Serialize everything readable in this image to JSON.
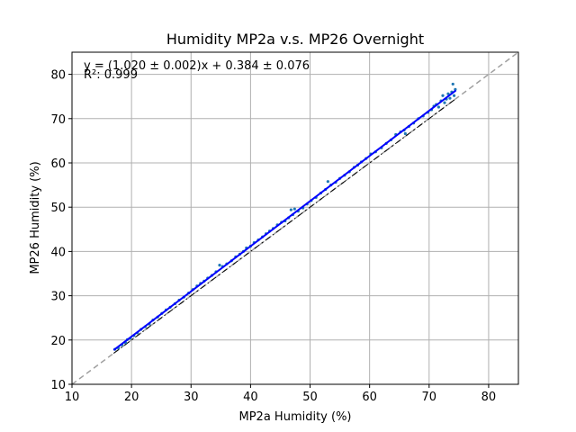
{
  "chart_data": {
    "type": "scatter",
    "title": "Humidity MP2a v.s. MP26 Overnight",
    "xlabel": "MP2a Humidity (%)",
    "ylabel": "MP26 Humidity (%)",
    "xlim": [
      10,
      85
    ],
    "ylim": [
      10,
      85
    ],
    "xticks": [
      10,
      20,
      30,
      40,
      50,
      60,
      70,
      80
    ],
    "yticks": [
      10,
      20,
      30,
      40,
      50,
      60,
      70,
      80
    ],
    "grid": true,
    "annotations": {
      "equation": "y = (1.020 ± 0.002)x + 0.384 ± 0.076",
      "r_squared": "R²: 0.999"
    },
    "fit": {
      "slope": 1.02,
      "intercept": 0.384,
      "x_range": [
        17,
        74.5
      ],
      "color": "#0000ff"
    },
    "identity": {
      "slope": 1.0,
      "intercept": 0,
      "x_range": [
        10,
        85
      ],
      "color": "#a0a0a0",
      "style": "dashed"
    },
    "reference": {
      "slope": 1.0,
      "intercept": 0,
      "x_range": [
        17,
        74.5
      ],
      "color": "#000000",
      "style": "dashdot"
    },
    "points_color": "#1f77b4",
    "points": [
      [
        17.2,
        17.9
      ],
      [
        17.8,
        18.2
      ],
      [
        18.4,
        18.9
      ],
      [
        19.0,
        19.4
      ],
      [
        19.3,
        20.1
      ],
      [
        19.8,
        20.4
      ],
      [
        20.4,
        21.0
      ],
      [
        21.0,
        21.6
      ],
      [
        21.6,
        22.4
      ],
      [
        22.3,
        23.0
      ],
      [
        23.0,
        23.6
      ],
      [
        23.6,
        24.5
      ],
      [
        24.4,
        25.2
      ],
      [
        25.1,
        26.0
      ],
      [
        25.8,
        26.8
      ],
      [
        26.5,
        27.4
      ],
      [
        27.3,
        28.2
      ],
      [
        28.0,
        29.0
      ],
      [
        28.8,
        29.7
      ],
      [
        29.6,
        30.6
      ],
      [
        30.3,
        31.4
      ],
      [
        31.0,
        32.2
      ],
      [
        31.6,
        32.8
      ],
      [
        32.2,
        33.3
      ],
      [
        32.8,
        34.0
      ],
      [
        33.5,
        34.6
      ],
      [
        34.2,
        35.4
      ],
      [
        34.8,
        36.9
      ],
      [
        35.3,
        36.6
      ],
      [
        36.0,
        37.2
      ],
      [
        36.8,
        37.9
      ],
      [
        37.5,
        38.8
      ],
      [
        38.2,
        39.4
      ],
      [
        38.8,
        40.0
      ],
      [
        39.3,
        40.8
      ],
      [
        40.0,
        41.2
      ],
      [
        40.6,
        42.0
      ],
      [
        41.3,
        42.6
      ],
      [
        42.0,
        43.3
      ],
      [
        42.6,
        44.0
      ],
      [
        43.2,
        44.6
      ],
      [
        43.8,
        45.2
      ],
      [
        44.5,
        46.0
      ],
      [
        45.2,
        46.6
      ],
      [
        45.8,
        46.9
      ],
      [
        46.4,
        47.6
      ],
      [
        46.8,
        49.4
      ],
      [
        47.4,
        49.6
      ],
      [
        47.1,
        48.3
      ],
      [
        48.0,
        49.1
      ],
      [
        48.8,
        49.8
      ],
      [
        49.5,
        50.7
      ],
      [
        50.2,
        51.5
      ],
      [
        51.0,
        52.2
      ],
      [
        51.8,
        53.2
      ],
      [
        52.6,
        54.0
      ],
      [
        53.0,
        55.8
      ],
      [
        53.5,
        55.0
      ],
      [
        54.3,
        55.6
      ],
      [
        55.0,
        56.5
      ],
      [
        55.8,
        57.2
      ],
      [
        56.6,
        58.0
      ],
      [
        57.4,
        59.0
      ],
      [
        58.0,
        59.5
      ],
      [
        58.6,
        60.2
      ],
      [
        59.4,
        61.0
      ],
      [
        60.2,
        62.0
      ],
      [
        61.0,
        62.5
      ],
      [
        62.0,
        63.4
      ],
      [
        62.8,
        64.4
      ],
      [
        63.6,
        65.2
      ],
      [
        64.4,
        66.4
      ],
      [
        65.2,
        67.0
      ],
      [
        65.8,
        67.4
      ],
      [
        66.0,
        66.6
      ],
      [
        66.6,
        68.2
      ],
      [
        67.4,
        69.0
      ],
      [
        68.2,
        70.0
      ],
      [
        69.0,
        70.6
      ],
      [
        69.8,
        71.4
      ],
      [
        70.4,
        72.0
      ],
      [
        70.8,
        72.8
      ],
      [
        71.2,
        73.2
      ],
      [
        71.6,
        72.6
      ],
      [
        72.0,
        74.0
      ],
      [
        72.3,
        75.2
      ],
      [
        72.6,
        73.6
      ],
      [
        72.9,
        74.4
      ],
      [
        73.2,
        75.6
      ],
      [
        73.5,
        74.6
      ],
      [
        73.8,
        76.0
      ],
      [
        74.0,
        77.8
      ],
      [
        74.2,
        75.2
      ],
      [
        74.4,
        76.6
      ]
    ]
  }
}
